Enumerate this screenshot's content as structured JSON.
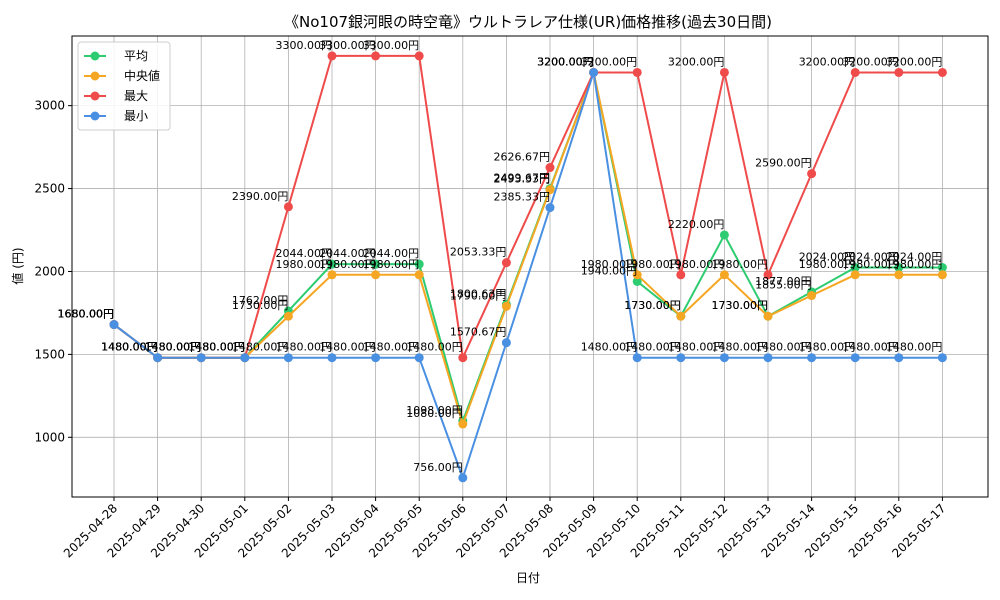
{
  "chart_data": {
    "type": "line",
    "title": "《No107銀河眼の時空竜》ウルトラレア仕様(UR)価格推移(過去30日間)",
    "xlabel": "日付",
    "ylabel": "値 (円)",
    "categories": [
      "2025-04-28",
      "2025-04-29",
      "2025-04-30",
      "2025-05-01",
      "2025-05-02",
      "2025-05-03",
      "2025-05-04",
      "2025-05-05",
      "2025-05-06",
      "2025-05-07",
      "2025-05-08",
      "2025-05-09",
      "2025-05-10",
      "2025-05-11",
      "2025-05-12",
      "2025-05-13",
      "2025-05-14",
      "2025-05-15",
      "2025-05-16",
      "2025-05-17"
    ],
    "ylim": [
      640,
      3420
    ],
    "yticks": [
      1000,
      1500,
      2000,
      2500,
      3000
    ],
    "value_suffix": "円",
    "grid": true,
    "legend_position": "top-left",
    "series": [
      {
        "name": "平均",
        "color": "#2ecc71",
        "values": [
          1680,
          1480,
          1480,
          1480,
          1762,
          2044,
          2044,
          2044,
          1098,
          1800.63,
          2499.67,
          3200,
          1940,
          1730,
          2220,
          1730,
          1877,
          2024,
          2024,
          2024
        ]
      },
      {
        "name": "中央値",
        "color": "#f5a623",
        "values": [
          1680,
          1480,
          1480,
          1480,
          1730,
          1980,
          1980,
          1980,
          1080,
          1790,
          2493.33,
          3200,
          1980,
          1730,
          1980,
          1730,
          1855,
          1980,
          1980,
          1980
        ]
      },
      {
        "name": "最大",
        "color": "#ef4b4b",
        "values": [
          1680,
          1480,
          1480,
          1480,
          2390,
          3300,
          3300,
          3300,
          1480,
          2053.33,
          2626.67,
          3200,
          3200,
          1980,
          3200,
          1980,
          2590,
          3200,
          3200,
          3200
        ]
      },
      {
        "name": "最小",
        "color": "#4a90e2",
        "values": [
          1680,
          1480,
          1480,
          1480,
          1480,
          1480,
          1480,
          1480,
          756,
          1570.67,
          2385.33,
          3200,
          1480,
          1480,
          1480,
          1480,
          1480,
          1480,
          1480,
          1480
        ]
      }
    ]
  }
}
